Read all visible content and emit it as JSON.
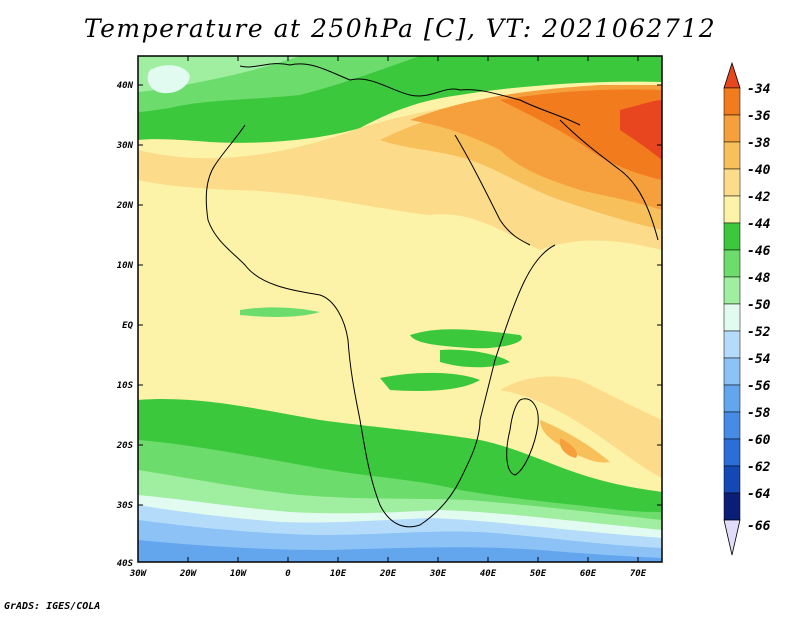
{
  "title": "Temperature at 250hPa [C], VT: 2021062712",
  "footer": "GrADS: IGES/COLA",
  "map": {
    "lon_range": [
      -30,
      75
    ],
    "lat_range": [
      -40,
      45
    ],
    "lat_labels": [
      "40N",
      "30N",
      "20N",
      "10N",
      "EQ",
      "10S",
      "20S",
      "30S",
      "40S"
    ],
    "lon_labels": [
      "30W",
      "20W",
      "10W",
      "0",
      "10E",
      "20E",
      "30E",
      "40E",
      "50E",
      "60E",
      "70E"
    ]
  },
  "colorbar": {
    "levels": [
      "-34",
      "-36",
      "-38",
      "-40",
      "-42",
      "-44",
      "-46",
      "-48",
      "-50",
      "-52",
      "-54",
      "-56",
      "-58",
      "-60",
      "-62",
      "-64",
      "-66"
    ],
    "colors": {
      "c_m34": "#e8461e",
      "c_m36": "#f27b1e",
      "c_m38": "#f5a03c",
      "c_m40": "#f8c05a",
      "c_m42": "#fcdc8a",
      "c_m44": "#fdf3a8",
      "c_m46": "#3cc83c",
      "c_m48": "#6cdc6c",
      "c_m50": "#a0eea0",
      "c_m52": "#e2fbf0",
      "c_m54": "#b4dcfa",
      "c_m56": "#8cc2f5",
      "c_m58": "#64a6ee",
      "c_m60": "#468ce6",
      "c_m62": "#2c6ed8",
      "c_m64": "#1448b4",
      "c_m66": "#0a1e78",
      "c_low": "#e0dcfa"
    }
  }
}
